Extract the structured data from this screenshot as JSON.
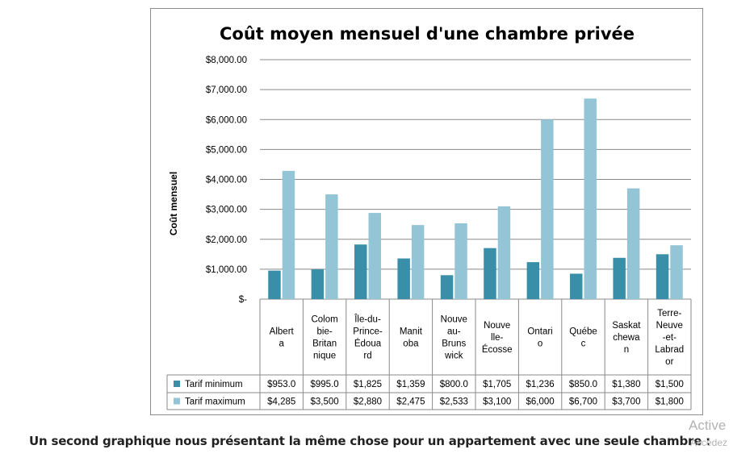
{
  "chart_data": {
    "type": "bar",
    "title": "Coût moyen mensuel d'une chambre privée",
    "ylabel": "Coût mensuel",
    "xlabel": "",
    "ylim": [
      0,
      8000
    ],
    "y_ticks": [
      "$-",
      "$1,000.00",
      "$2,000.00",
      "$3,000.00",
      "$4,000.00",
      "$5,000.00",
      "$6,000.00",
      "$7,000.00",
      "$8,000.00"
    ],
    "y_tick_values": [
      0,
      1000,
      2000,
      3000,
      4000,
      5000,
      6000,
      7000,
      8000
    ],
    "grid": true,
    "legend_placement": "data-table",
    "categories": [
      [
        "Albert",
        "a"
      ],
      [
        "Colom",
        "bie-",
        "Britan",
        "nique"
      ],
      [
        "Île-du-",
        "Prince-",
        "Édoua",
        "rd"
      ],
      [
        "Manit",
        "oba"
      ],
      [
        "Nouve",
        "au-",
        "Bruns",
        "wick"
      ],
      [
        "Nouve",
        "lle-",
        "Écosse"
      ],
      [
        "Ontari",
        "o"
      ],
      [
        "Québe",
        "c"
      ],
      [
        "Saskat",
        "chewa",
        "n"
      ],
      [
        "Terre-",
        "Neuve",
        "-et-",
        "Labrad",
        "or"
      ]
    ],
    "series": [
      {
        "name": "Tarif minimum",
        "color": "#3a8fa8",
        "values": [
          953,
          995,
          1825,
          1359,
          800,
          1705,
          1236,
          850,
          1380,
          1500
        ],
        "labels": [
          "$953.0",
          "$995.0",
          "$1,825",
          "$1,359",
          "$800.0",
          "$1,705",
          "$1,236",
          "$850.0",
          "$1,380",
          "$1,500"
        ]
      },
      {
        "name": "Tarif maximum",
        "color": "#93c5d6",
        "values": [
          4285,
          3500,
          2880,
          2475,
          2533,
          3100,
          6000,
          6700,
          3700,
          1800
        ],
        "labels": [
          "$4,285",
          "$3,500",
          "$2,880",
          "$2,475",
          "$2,533",
          "$3,100",
          "$6,000",
          "$6,700",
          "$3,700",
          "$1,800"
        ]
      }
    ]
  },
  "caption": "Un second graphique nous présentant la même chose pour un appartement avec une seule chambre :",
  "watermark": {
    "line1": "Active",
    "line2": "Accédez"
  }
}
